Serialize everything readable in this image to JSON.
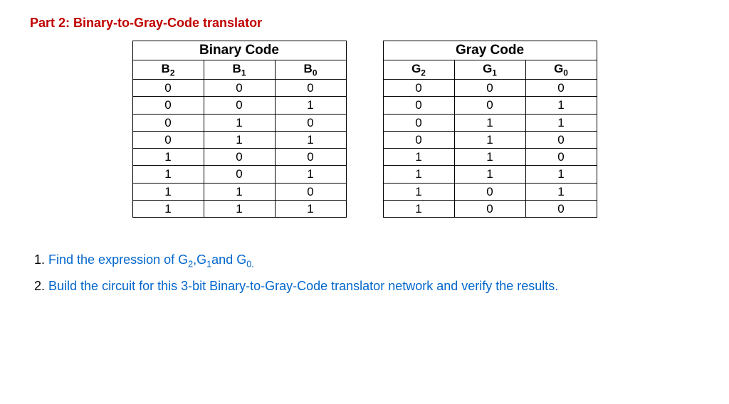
{
  "title": "Part 2: Binary-to-Gray-Code translator",
  "table": {
    "group_headers": {
      "binary": "Binary Code",
      "gray": "Gray Code"
    },
    "sub_headers": {
      "b2": "B",
      "b2s": "2",
      "b1": "B",
      "b1s": "1",
      "b0": "B",
      "b0s": "0",
      "g2": "G",
      "g2s": "2",
      "g1": "G",
      "g1s": "1",
      "g0": "G",
      "g0s": "0"
    },
    "rows": [
      [
        "0",
        "0",
        "0",
        "0",
        "0",
        "0"
      ],
      [
        "0",
        "0",
        "1",
        "0",
        "0",
        "1"
      ],
      [
        "0",
        "1",
        "0",
        "0",
        "1",
        "1"
      ],
      [
        "0",
        "1",
        "1",
        "0",
        "1",
        "0"
      ],
      [
        "1",
        "0",
        "0",
        "1",
        "1",
        "0"
      ],
      [
        "1",
        "0",
        "1",
        "1",
        "1",
        "1"
      ],
      [
        "1",
        "1",
        "0",
        "1",
        "0",
        "1"
      ],
      [
        "1",
        "1",
        "1",
        "1",
        "0",
        "0"
      ]
    ]
  },
  "questions": {
    "q1num": "1. ",
    "q1pre": "Find the expression of G",
    "q1s1": "2",
    "q1mid1": ",G",
    "q1s2": "1",
    "q1mid2": "and G",
    "q1s3": "0.",
    "q2num": "2. ",
    "q2text": "Build the circuit for this 3-bit Binary-to-Gray-Code translator network and verify the results."
  }
}
